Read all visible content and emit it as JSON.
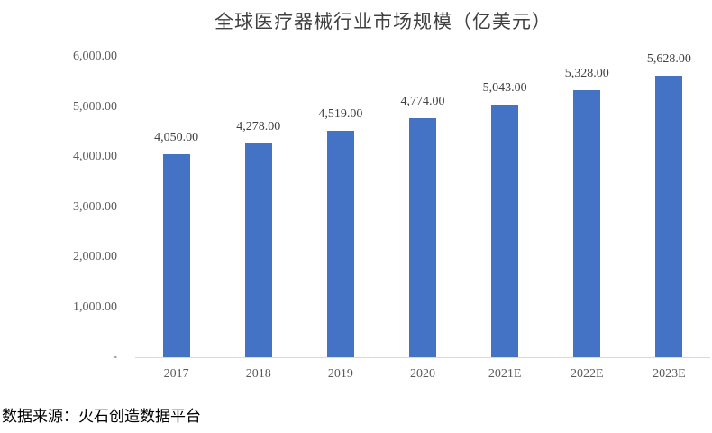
{
  "title": "全球医疗器械行业市场规模（亿美元）",
  "source_note": "数据来源：火石创造数据平台",
  "colors": {
    "bar": "#4472C4",
    "axis_line": "#D9D9D9",
    "title_text": "#404040",
    "tick_text": "#595959",
    "data_label_text": "#404040",
    "background": "#FFFFFF"
  },
  "chart_data": {
    "type": "bar",
    "title": "全球医疗器械行业市场规模（亿美元）",
    "categories": [
      "2017",
      "2018",
      "2019",
      "2020",
      "2021E",
      "2022E",
      "2023E"
    ],
    "values": [
      4050,
      4278,
      4519,
      4774,
      5043,
      5328,
      5628
    ],
    "value_labels": [
      "4,050.00",
      "4,278.00",
      "4,519.00",
      "4,774.00",
      "5,043.00",
      "5,328.00",
      "5,628.00"
    ],
    "xlabel": "",
    "ylabel": "",
    "ylim": [
      0,
      6000
    ],
    "y_tick_labels": [
      "6,000.00",
      "5,000.00",
      "4,000.00",
      "3,000.00",
      "2,000.00",
      "1,000.00",
      "-"
    ],
    "y_tick_values": [
      6000,
      5000,
      4000,
      3000,
      2000,
      1000,
      0
    ],
    "grid": false,
    "legend": "none"
  }
}
